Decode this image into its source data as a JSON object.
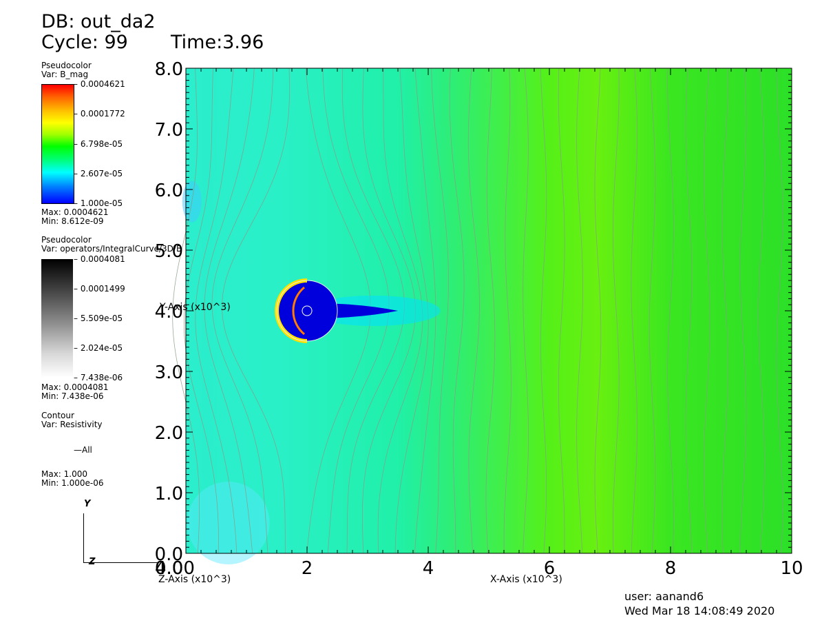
{
  "header": {
    "db": "DB: out_da2",
    "cycle": "Cycle: 99",
    "time": "Time:3.96"
  },
  "legends": [
    {
      "title": "Pseudocolor",
      "var": "Var: B_mag",
      "ticks": [
        "0.0004621",
        "0.0001772",
        "6.798e-05",
        "2.607e-05",
        "1.000e-05"
      ],
      "max": "Max:  0.0004621",
      "min": "Min:  8.612e-09",
      "colormap": "hot-rainbow"
    },
    {
      "title": "Pseudocolor",
      "var": "Var: operators/IntegralCurve/3D/B",
      "ticks": [
        "0.0004081",
        "0.0001499",
        "5.509e-05",
        "2.024e-05",
        "7.438e-06"
      ],
      "max": "Max:  0.0004081",
      "min": "Min:  7.438e-06",
      "colormap": "gray"
    },
    {
      "title": "Contour",
      "var": "Var: Resistivity",
      "entry": "All",
      "max": "Max:  1.000",
      "min": "Min:  1.000e-06"
    }
  ],
  "triad": {
    "y": "Y",
    "z": "Z"
  },
  "user": "user: aanand6",
  "date": "Wed Mar 18 14:08:49 2020",
  "chart_data": {
    "type": "heatmap",
    "title": "",
    "xlabel": "X-Axis (x10^3)",
    "ylabel": "Y-Axis (x10^3)",
    "zlabel": "Z-Axis (x10^3)",
    "xlim": [
      0,
      10
    ],
    "ylim": [
      0,
      8
    ],
    "x_ticks": [
      "2",
      "4",
      "6",
      "8",
      "10"
    ],
    "x_tick_values": [
      2,
      4,
      6,
      8,
      10
    ],
    "y_ticks": [
      "0.0",
      "1.0",
      "2.0",
      "3.0",
      "4.0",
      "5.0",
      "6.0",
      "7.0",
      "8.0"
    ],
    "y_tick_values": [
      0,
      1,
      2,
      3,
      4,
      5,
      6,
      7,
      8
    ],
    "origin_overlap_labels": [
      "4.0",
      "0.0",
      "0.00"
    ],
    "obstacle": {
      "cx": 2.0,
      "cy": 4.0,
      "r": 0.5
    },
    "inner_marker": {
      "cx": 2.0,
      "cy": 4.0,
      "r": 0.08
    },
    "wake_end_x": 4.2,
    "background_field": [
      {
        "x": 0.0,
        "color": "#2aeecc"
      },
      {
        "x": 1.5,
        "color": "#2af0c8"
      },
      {
        "x": 3.5,
        "color": "#20f0a8"
      },
      {
        "x": 4.5,
        "color": "#30ee70"
      },
      {
        "x": 6.0,
        "color": "#55f018"
      },
      {
        "x": 6.8,
        "color": "#68f010"
      },
      {
        "x": 8.0,
        "color": "#3ae620"
      },
      {
        "x": 10.0,
        "color": "#2ce028"
      }
    ],
    "streamline_x": [
      0.2,
      0.5,
      0.8,
      1.1,
      1.4,
      1.7,
      2.0,
      2.3,
      2.6,
      2.9,
      3.2,
      3.5,
      3.8,
      4.1,
      4.4,
      4.7,
      5.0,
      5.3,
      5.6,
      5.9,
      6.2,
      6.5,
      6.8,
      7.1,
      7.4,
      7.7,
      8.0,
      8.3,
      8.6,
      8.9,
      9.2,
      9.5,
      9.8
    ]
  }
}
